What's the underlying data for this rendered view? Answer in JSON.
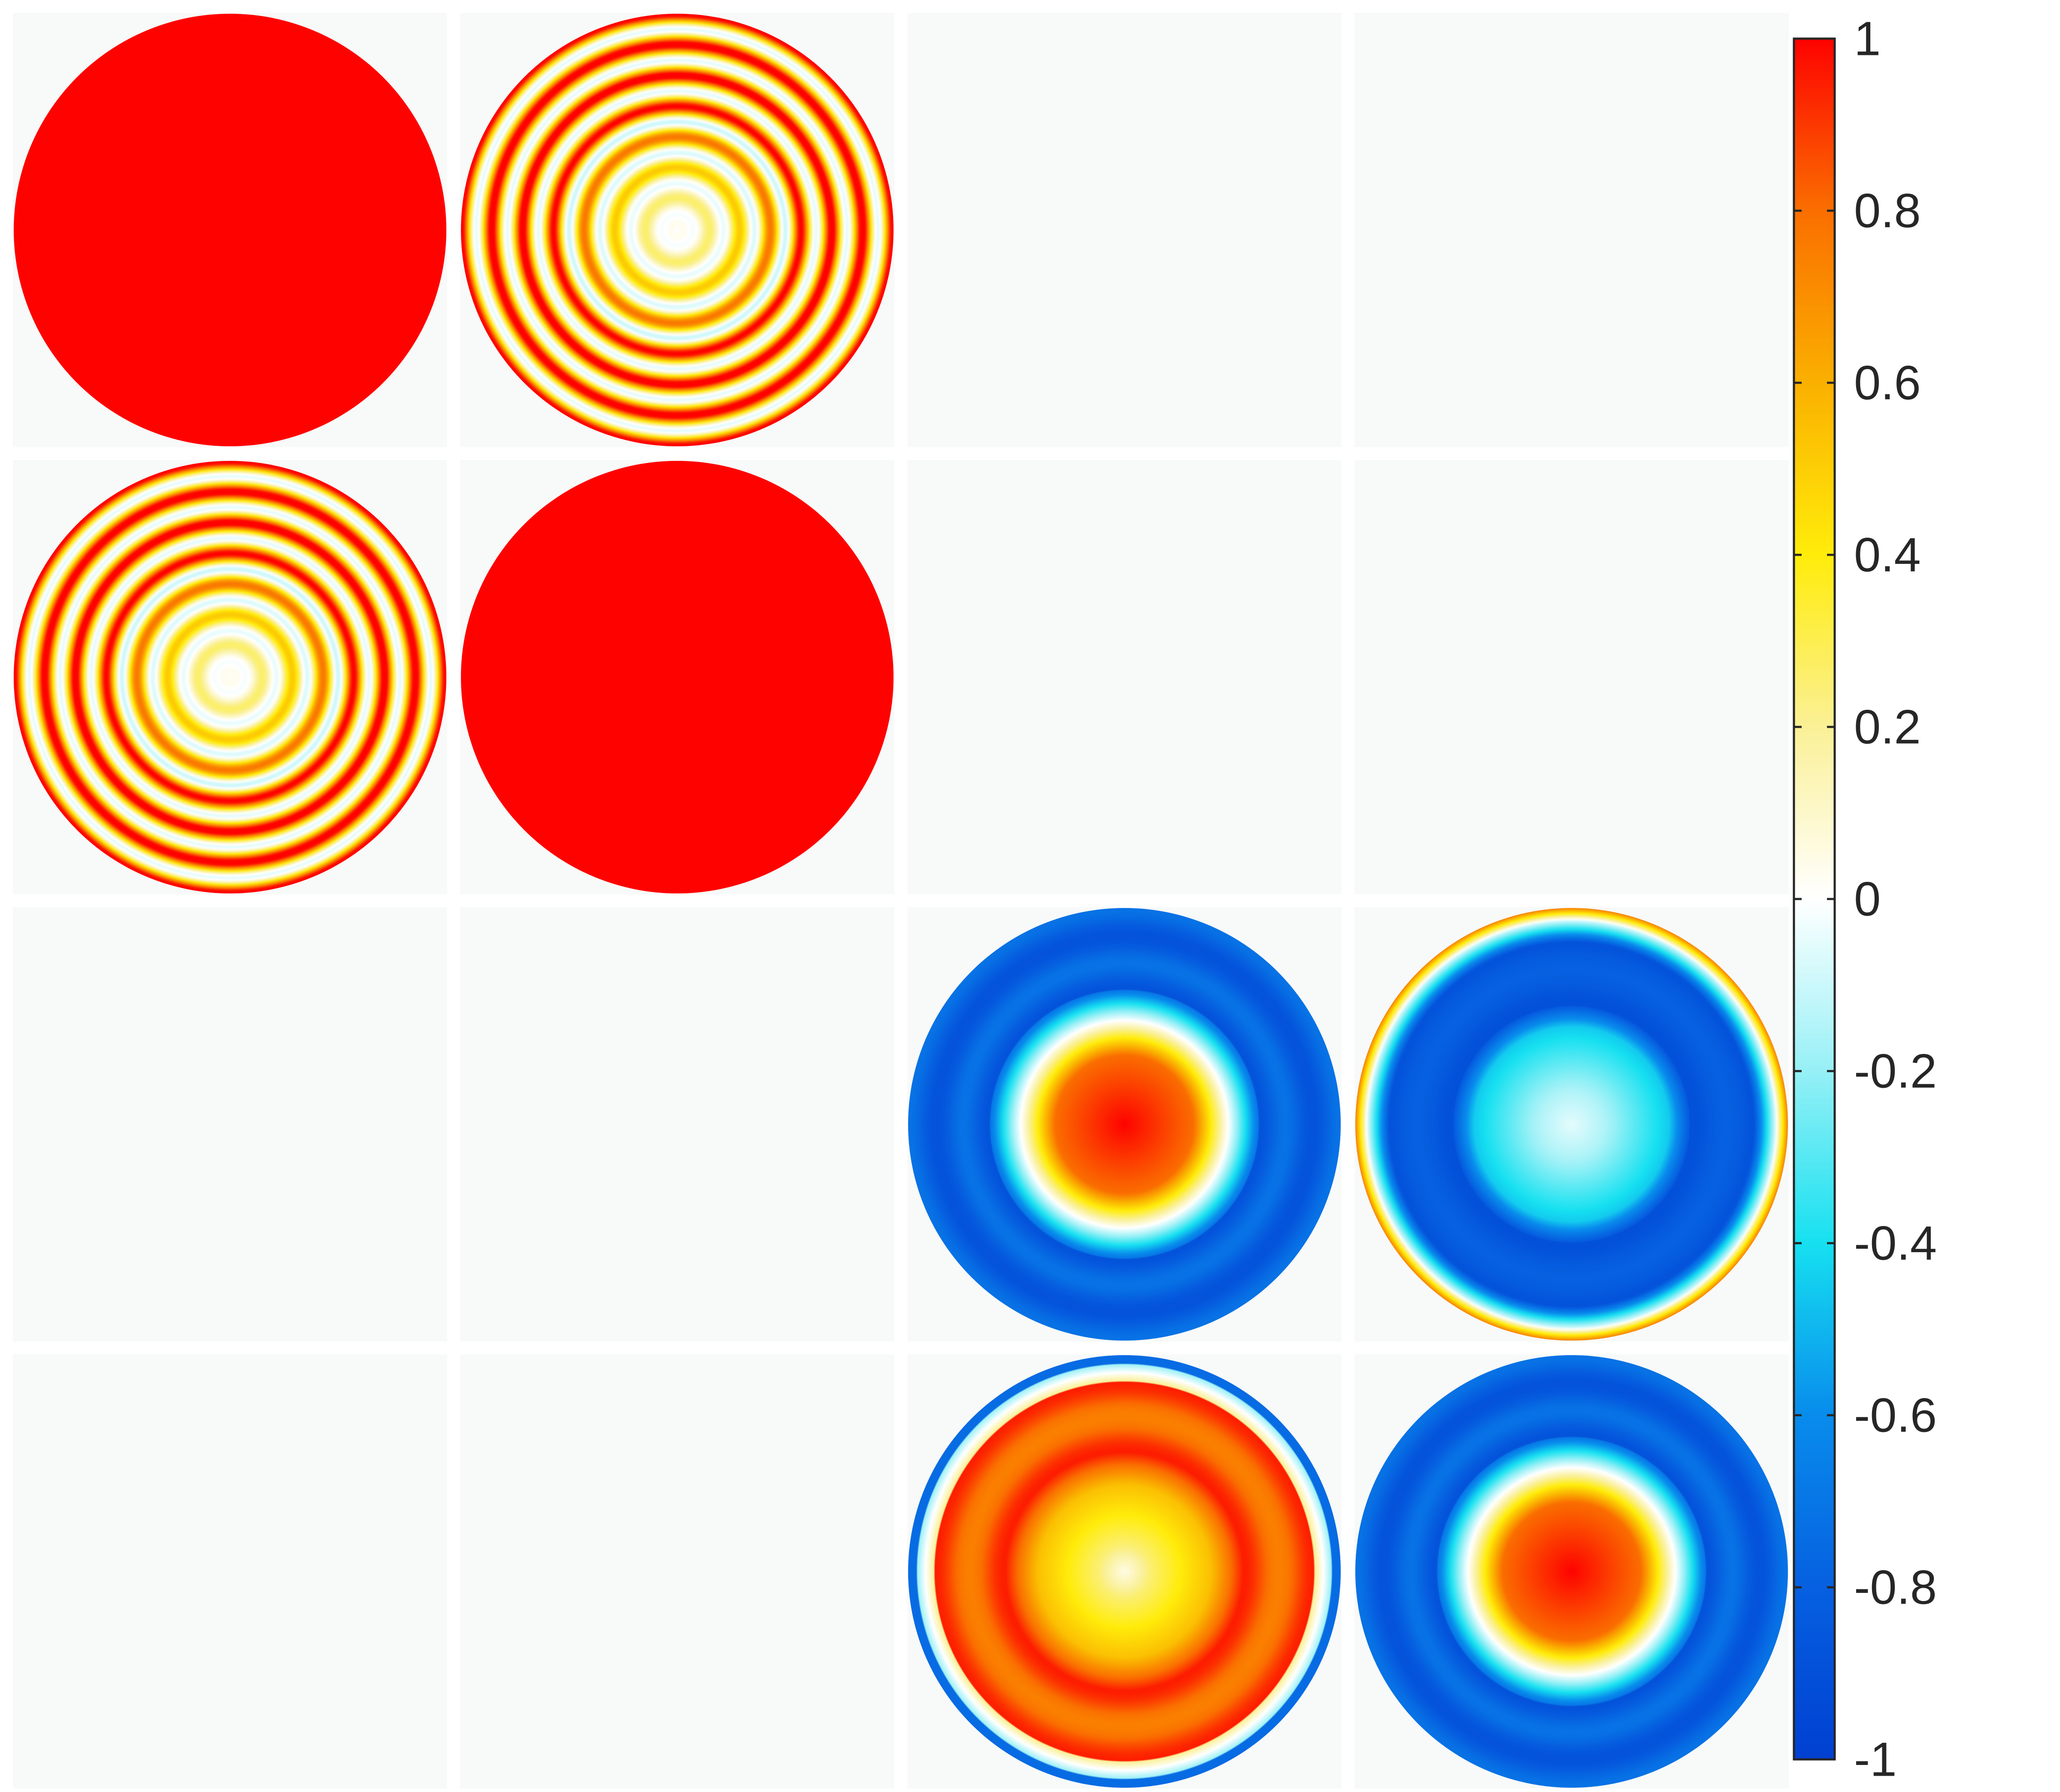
{
  "chart_data": {
    "type": "heatmap",
    "title": "",
    "xlabel": "",
    "ylabel": "",
    "grid": {
      "rows": 4,
      "cols": 4
    },
    "panels": [
      {
        "row": 0,
        "col": 0,
        "pattern": "uniform",
        "rings": 0,
        "center": 1.0,
        "edge": 1.0,
        "contrast": 0
      },
      {
        "row": 0,
        "col": 1,
        "pattern": "oscillating-rings",
        "rings": 7,
        "center": 0.0,
        "edge": 0.5,
        "contrast": 0.55
      },
      {
        "row": 0,
        "col": 2,
        "pattern": "empty"
      },
      {
        "row": 0,
        "col": 3,
        "pattern": "empty"
      },
      {
        "row": 1,
        "col": 0,
        "pattern": "oscillating-rings",
        "rings": 7,
        "center": 0.0,
        "edge": 0.5,
        "contrast": 0.55
      },
      {
        "row": 1,
        "col": 1,
        "pattern": "uniform",
        "rings": 0,
        "center": 1.0,
        "edge": 1.0,
        "contrast": 0
      },
      {
        "row": 1,
        "col": 2,
        "pattern": "empty"
      },
      {
        "row": 1,
        "col": 3,
        "pattern": "empty"
      },
      {
        "row": 2,
        "col": 0,
        "pattern": "empty"
      },
      {
        "row": 2,
        "col": 1,
        "pattern": "empty"
      },
      {
        "row": 2,
        "col": 2,
        "pattern": "center-high-edge-low",
        "rings": 0,
        "center": 1.0,
        "edge": -0.85,
        "contrast": 0
      },
      {
        "row": 2,
        "col": 3,
        "pattern": "center-mid-edge-low",
        "rings": 0,
        "center": 0.0,
        "edge": -0.85,
        "rim": 0.75,
        "contrast": 0
      },
      {
        "row": 3,
        "col": 0,
        "pattern": "empty"
      },
      {
        "row": 3,
        "col": 1,
        "pattern": "empty"
      },
      {
        "row": 3,
        "col": 2,
        "pattern": "center-mid-ring-high",
        "rings": 0,
        "center": 0.0,
        "edge": 0.9,
        "rim": -0.75,
        "contrast": 0
      },
      {
        "row": 3,
        "col": 3,
        "pattern": "center-high-edge-low",
        "rings": 0,
        "center": 1.0,
        "edge": -0.85,
        "contrast": 0
      }
    ],
    "colorbar": {
      "colormap": "jet-with-white-center",
      "limits": [
        -1,
        1
      ],
      "ticks": [
        {
          "value": 1,
          "label": "1"
        },
        {
          "value": 0.8,
          "label": "0.8"
        },
        {
          "value": 0.6,
          "label": "0.6"
        },
        {
          "value": 0.4,
          "label": "0.4"
        },
        {
          "value": 0.2,
          "label": "0.2"
        },
        {
          "value": 0,
          "label": "0"
        },
        {
          "value": -0.2,
          "label": "-0.2"
        },
        {
          "value": -0.4,
          "label": "-0.4"
        },
        {
          "value": -0.6,
          "label": "-0.6"
        },
        {
          "value": -0.8,
          "label": "-0.8"
        },
        {
          "value": -1,
          "label": "-1"
        }
      ]
    },
    "colors": {
      "panel_background": "#f8f9f9",
      "figure_background": "#ffffff",
      "text": "#262626"
    }
  }
}
